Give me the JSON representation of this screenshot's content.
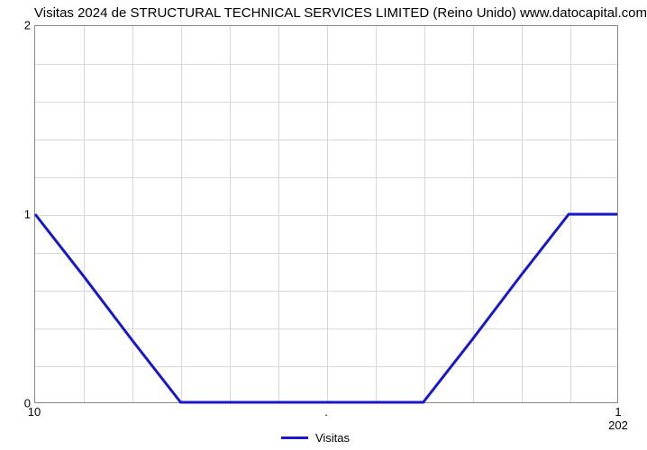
{
  "chart": {
    "type": "line",
    "title": "Visitas 2024 de STRUCTURAL TECHNICAL SERVICES LIMITED (Reino Unido) www.datocapital.com",
    "title_fontsize": 15,
    "title_color": "#000000",
    "background_color": "#ffffff",
    "plot_border_color": "#888888",
    "grid_color": "#d8d8d8",
    "font_family": "Arial",
    "xlim": [
      0,
      12
    ],
    "ylim": [
      0,
      2
    ],
    "x_major_grid_count": 12,
    "y_minor_per_major": 5,
    "y_axis": {
      "ticks": [
        {
          "value": 0,
          "label": "0"
        },
        {
          "value": 1,
          "label": "1"
        },
        {
          "value": 2,
          "label": "2"
        }
      ],
      "fontsize": 13
    },
    "x_axis": {
      "ticks": [
        {
          "pos": 0,
          "label": "10"
        },
        {
          "pos": 6,
          "label": "."
        },
        {
          "pos": 12,
          "label": "1"
        }
      ],
      "sublabel": {
        "pos": 12,
        "label": "202"
      },
      "fontsize": 13
    },
    "series": [
      {
        "name": "Visitas",
        "color": "#1818c8",
        "line_width": 3,
        "x": [
          0,
          1,
          2,
          3,
          4,
          5,
          6,
          7,
          8,
          9,
          10,
          11,
          12
        ],
        "y": [
          1,
          0.67,
          0.33,
          0,
          0,
          0,
          0,
          0,
          0,
          0.33,
          0.67,
          1,
          1
        ]
      }
    ],
    "legend": {
      "label": "Visitas",
      "color": "#1818c8",
      "swatch_width": 30,
      "line_width": 3,
      "fontsize": 13,
      "position": "bottom-center"
    }
  }
}
